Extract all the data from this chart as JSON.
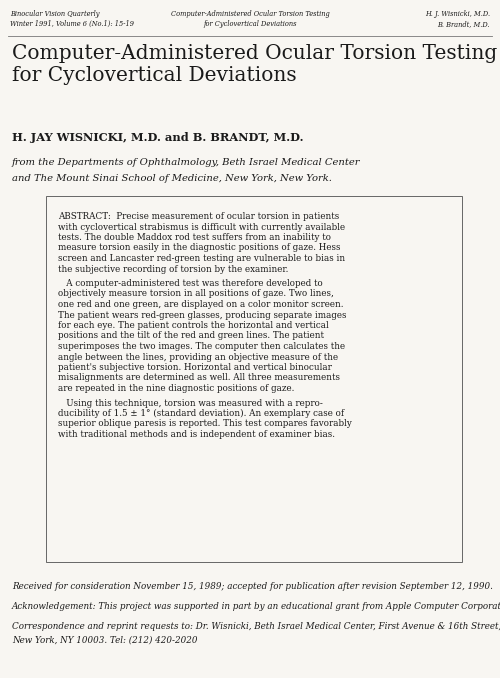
{
  "bg_color": "#f8f6f2",
  "text_color": "#1a1a1a",
  "header_left_line1": "Binocular Vision Quarterly",
  "header_left_line2": "Winter 1991, Volume 6 (No.1): 15-19",
  "header_center_line1": "Computer-Administered Ocular Torsion Testing",
  "header_center_line2": "for Cyclovertical Deviations",
  "header_right_line1": "H. J. Wisnicki, M.D.",
  "header_right_line2": "B. Brandt, M.D.",
  "main_title": "Computer-Administered Ocular Torsion Testing\nfor Cyclovertical Deviations",
  "authors": "H. JAY WISNICKI, M.D. and B. BRANDT, M.D.",
  "affiliation_line1": "from the Departments of Ophthalmology, Beth Israel Medical Center",
  "affiliation_line2": "and The Mount Sinai School of Medicine, New York, New York.",
  "p1_lines": [
    "ABSTRACT:  Precise measurement of ocular torsion in patients",
    "with cyclovertical strabismus is difficult with currently available",
    "tests. The double Maddox rod test suffers from an inability to",
    "measure torsion easily in the diagnostic positions of gaze. Hess",
    "screen and Lancaster red-green testing are vulnerable to bias in",
    "the subjective recording of torsion by the examiner."
  ],
  "p2_lines": [
    "   A computer-administered test was therefore developed to",
    "objectively measure torsion in all positions of gaze. Two lines,",
    "one red and one green, are displayed on a color monitor screen.",
    "The patient wears red-green glasses, producing separate images",
    "for each eye. The patient controls the horizontal and vertical",
    "positions and the tilt of the red and green lines. The patient",
    "superimposes the two images. The computer then calculates the",
    "angle between the lines, providing an objective measure of the",
    "patient's subjective torsion. Horizontal and vertical binocular",
    "misalignments are determined as well. All three measurements",
    "are repeated in the nine diagnostic positions of gaze."
  ],
  "p3_lines": [
    "   Using this technique, torsion was measured with a repro-",
    "ducibility of 1.5 ± 1° (standard deviation). An exemplary case of",
    "superior oblique paresis is reported. This test compares favorably",
    "with traditional methods and is independent of examiner bias."
  ],
  "footer_received": "Received for consideration November 15, 1989; accepted for publication after revision September 12, 1990.",
  "footer_ack": "Acknowledgement: This project was supported in part by an educational grant from Apple Computer Corporation.",
  "footer_corr_line1": "Correspondence and reprint requests to: Dr. Wisnicki, Beth Israel Medical Center, First Avenue & 16th Street,",
  "footer_corr_line2": "New York, NY 10003. Tel: (212) 420-2020",
  "header_fs": 4.8,
  "title_fs": 14.5,
  "authors_fs": 8.2,
  "affil_fs": 7.2,
  "abstract_fs": 6.3,
  "footer_fs": 6.3
}
